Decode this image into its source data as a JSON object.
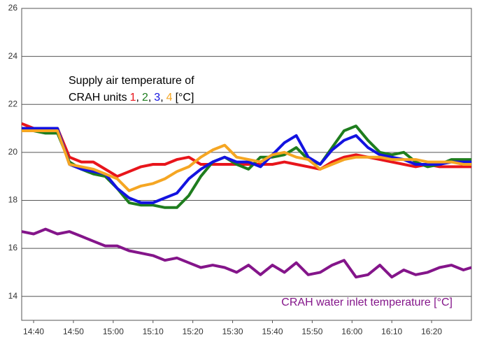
{
  "chart_data": {
    "type": "line",
    "annotation": {
      "line1": "Supply air temperature of",
      "prefix": "CRAH units",
      "separator": ",",
      "suffix": "[°C]"
    },
    "x": [
      "14:37",
      "14:40",
      "14:43",
      "14:46",
      "14:49",
      "14:52",
      "14:55",
      "14:58",
      "15:01",
      "15:04",
      "15:07",
      "15:10",
      "15:13",
      "15:16",
      "15:19",
      "15:22",
      "15:25",
      "15:28",
      "15:31",
      "15:34",
      "15:37",
      "15:40",
      "15:43",
      "15:46",
      "15:49",
      "15:52",
      "15:55",
      "15:58",
      "16:01",
      "16:04",
      "16:07",
      "16:10",
      "16:13",
      "16:16",
      "16:19",
      "16:22",
      "16:25",
      "16:28",
      "16:30"
    ],
    "series": [
      {
        "name": "1",
        "color": "#e8151b",
        "values": [
          21.2,
          21.0,
          21.0,
          21.0,
          19.8,
          19.6,
          19.6,
          19.3,
          19.0,
          19.2,
          19.4,
          19.5,
          19.5,
          19.7,
          19.8,
          19.5,
          19.5,
          19.5,
          19.5,
          19.5,
          19.5,
          19.5,
          19.6,
          19.5,
          19.4,
          19.3,
          19.6,
          19.8,
          19.9,
          19.8,
          19.7,
          19.6,
          19.5,
          19.4,
          19.5,
          19.4,
          19.4,
          19.4,
          19.4
        ]
      },
      {
        "name": "2",
        "color": "#1e7d1e",
        "values": [
          20.9,
          20.9,
          20.8,
          20.8,
          19.6,
          19.3,
          19.1,
          19.0,
          18.5,
          17.9,
          17.8,
          17.8,
          17.7,
          17.7,
          18.2,
          19.0,
          19.6,
          19.8,
          19.5,
          19.3,
          19.8,
          19.8,
          19.9,
          20.2,
          19.7,
          19.5,
          20.2,
          20.9,
          21.1,
          20.5,
          20.0,
          19.9,
          20.0,
          19.6,
          19.4,
          19.5,
          19.7,
          19.7,
          19.7
        ]
      },
      {
        "name": "3",
        "color": "#1313e0",
        "values": [
          21.0,
          21.0,
          21.0,
          21.0,
          19.5,
          19.3,
          19.2,
          19.1,
          18.5,
          18.1,
          17.9,
          17.9,
          18.1,
          18.3,
          18.9,
          19.3,
          19.6,
          19.8,
          19.6,
          19.6,
          19.4,
          19.9,
          20.4,
          20.7,
          19.8,
          19.5,
          20.1,
          20.5,
          20.7,
          20.2,
          19.9,
          19.8,
          19.7,
          19.5,
          19.5,
          19.5,
          19.6,
          19.6,
          19.6
        ]
      },
      {
        "name": "4",
        "color": "#f5a623",
        "values": [
          20.9,
          20.9,
          20.9,
          20.9,
          19.5,
          19.4,
          19.3,
          19.1,
          18.9,
          18.4,
          18.6,
          18.7,
          18.9,
          19.2,
          19.4,
          19.8,
          20.1,
          20.3,
          19.8,
          19.7,
          19.6,
          19.9,
          20.0,
          19.8,
          19.7,
          19.3,
          19.5,
          19.7,
          19.8,
          19.8,
          19.8,
          19.7,
          19.7,
          19.7,
          19.6,
          19.6,
          19.6,
          19.5,
          19.5
        ]
      },
      {
        "name": "CRAH water inlet temperature [°C]",
        "color": "#84158a",
        "values": [
          16.7,
          16.6,
          16.8,
          16.6,
          16.7,
          16.5,
          16.3,
          16.1,
          16.1,
          15.9,
          15.8,
          15.7,
          15.5,
          15.6,
          15.4,
          15.2,
          15.3,
          15.2,
          15.0,
          15.3,
          14.9,
          15.3,
          15.0,
          15.4,
          14.9,
          15.0,
          15.3,
          15.5,
          14.8,
          14.9,
          15.3,
          14.8,
          15.1,
          14.9,
          15.0,
          15.2,
          15.3,
          15.1,
          15.2
        ]
      }
    ],
    "xlim": [
      "14:37",
      "16:30"
    ],
    "xticks": [
      "14:40",
      "14:50",
      "15:00",
      "15:10",
      "15:20",
      "15:30",
      "15:40",
      "15:50",
      "16:00",
      "16:10",
      "16:20"
    ],
    "ylim": [
      13,
      26
    ],
    "yticks": [
      14,
      16,
      18,
      20,
      22,
      24,
      26
    ],
    "grid": true
  }
}
